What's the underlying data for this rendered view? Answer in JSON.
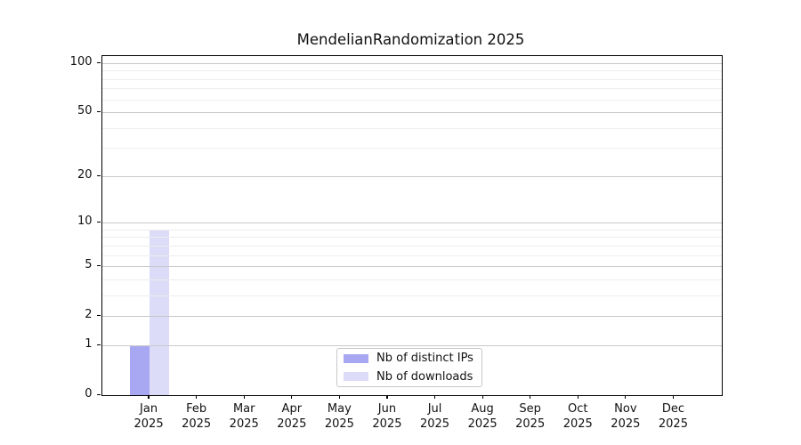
{
  "figure": {
    "background_color": "#ffffff",
    "text_color": "#111111"
  },
  "chart_data": {
    "type": "bar",
    "title": "MendelianRandomization 2025",
    "xlabel": "",
    "ylabel": "",
    "categories": [
      "Jan",
      "Feb",
      "Mar",
      "Apr",
      "May",
      "Jun",
      "Jul",
      "Aug",
      "Sep",
      "Oct",
      "Nov",
      "Dec"
    ],
    "year_label": "2025",
    "series": [
      {
        "name": "Nb of distinct IPs",
        "color": "#a8a8f2",
        "values": [
          1,
          0,
          0,
          0,
          0,
          0,
          0,
          0,
          0,
          0,
          0,
          0
        ]
      },
      {
        "name": "Nb of downloads",
        "color": "#dcdcf8",
        "values": [
          9,
          0,
          0,
          0,
          0,
          0,
          0,
          0,
          0,
          0,
          0,
          0
        ]
      }
    ],
    "yscale": "log1p",
    "ylim": [
      0,
      100
    ],
    "ytick_values": [
      0,
      1,
      2,
      5,
      10,
      20,
      50,
      100
    ],
    "ytick_labels": [
      "0",
      "1",
      "2",
      "5",
      "10",
      "20",
      "50",
      "100"
    ],
    "minor_gridline_values": [
      3,
      4,
      6,
      7,
      8,
      9,
      30,
      40,
      60,
      70,
      80,
      90
    ],
    "grid": "horizontal, drawn above bars",
    "major_grid_color": "#c9c9c9",
    "minor_grid_color": "#ededed",
    "legend_position": "lower center",
    "legend_border_color": "#c9c9c9"
  }
}
